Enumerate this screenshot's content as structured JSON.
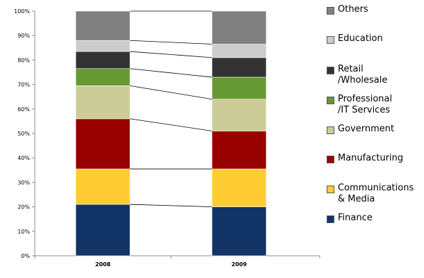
{
  "chart_data": {
    "type": "bar",
    "stacked": true,
    "categories": [
      "2008",
      "2009"
    ],
    "ylim": [
      0,
      100
    ],
    "y_ticks": [
      "0%",
      "10%",
      "20%",
      "30%",
      "40%",
      "50%",
      "60%",
      "70%",
      "80%",
      "90%",
      "100%"
    ],
    "series_lines_connecting_bars": true,
    "series": [
      {
        "name": "Finance",
        "color": "#123466",
        "values": [
          21,
          20
        ]
      },
      {
        "name": "Communications & Media",
        "color": "#ffcc33",
        "values": [
          14.5,
          15.5
        ]
      },
      {
        "name": "Manufacturing",
        "color": "#990000",
        "values": [
          20.5,
          15.5
        ]
      },
      {
        "name": "Government",
        "color": "#cccc99",
        "values": [
          13.5,
          13
        ]
      },
      {
        "name": "Professional /IT Services",
        "color": "#669933",
        "values": [
          7,
          9
        ]
      },
      {
        "name": "Retail /Wholesale",
        "color": "#333333",
        "values": [
          7,
          8
        ]
      },
      {
        "name": "Education",
        "color": "#cccccc",
        "values": [
          4.5,
          5.5
        ]
      },
      {
        "name": "Others",
        "color": "#808080",
        "values": [
          12,
          13.5
        ]
      }
    ]
  },
  "legend": {
    "items": [
      {
        "label": "Others",
        "color": "#808080"
      },
      {
        "label": "Education",
        "color": "#cccccc"
      },
      {
        "label": "Retail\n/Wholesale",
        "color": "#333333"
      },
      {
        "label": "Professional\n/IT Services",
        "color": "#669933"
      },
      {
        "label": "Government",
        "color": "#cccc99"
      },
      {
        "label": "Manufacturing",
        "color": "#990000"
      },
      {
        "label": "Communications\n& Media",
        "color": "#ffcc33"
      },
      {
        "label": "Finance",
        "color": "#123466"
      }
    ]
  }
}
